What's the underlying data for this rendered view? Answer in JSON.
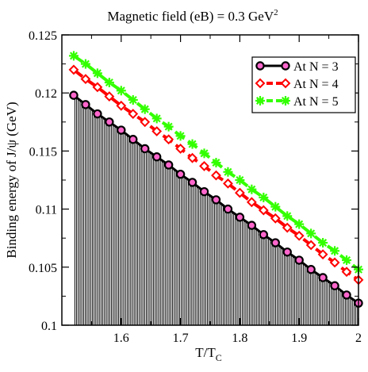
{
  "chart_data": {
    "type": "line",
    "title_main": "Magnetic field (eB) = 0.3 GeV",
    "title_sup": "2",
    "xlabel_main": "T/T",
    "xlabel_sub": "C",
    "ylabel": "Binding energy of J/ψ  (GeV)",
    "xlim": [
      1.5,
      2.0
    ],
    "ylim": [
      0.1,
      0.125
    ],
    "xticks": [
      1.6,
      1.7,
      1.8,
      1.9,
      2.0
    ],
    "xtick_labels": [
      "1.6",
      "1.7",
      "1.8",
      "1.9",
      "2"
    ],
    "yticks": [
      0.1,
      0.105,
      0.11,
      0.115,
      0.12,
      0.125
    ],
    "ytick_labels": [
      "0.1",
      "0.105",
      "0.11",
      "0.115",
      "0.12",
      "0.125"
    ],
    "legend_position": "top-right",
    "hatched_fill_under": "At N = 3",
    "x": [
      1.52,
      1.54,
      1.56,
      1.58,
      1.6,
      1.62,
      1.64,
      1.66,
      1.68,
      1.7,
      1.72,
      1.74,
      1.76,
      1.78,
      1.8,
      1.82,
      1.84,
      1.86,
      1.88,
      1.9,
      1.92,
      1.94,
      1.96,
      1.98,
      2.0
    ],
    "series": [
      {
        "name": "At N = 3",
        "color": "#000000",
        "marker": "circle",
        "values": [
          0.1198,
          0.119,
          0.1182,
          0.1175,
          0.1168,
          0.116,
          0.1152,
          0.1145,
          0.1138,
          0.113,
          0.1123,
          0.1115,
          0.1108,
          0.11,
          0.1093,
          0.1086,
          0.1078,
          0.1071,
          0.1063,
          0.1056,
          0.1048,
          0.1041,
          0.1034,
          0.1026,
          0.1019
        ]
      },
      {
        "name": "At N = 4",
        "color": "#ff0000",
        "marker": "diamond",
        "values": [
          0.122,
          0.1212,
          0.1205,
          0.1197,
          0.1189,
          0.1182,
          0.1175,
          0.1167,
          0.116,
          0.1152,
          0.1144,
          0.1137,
          0.1129,
          0.1122,
          0.1114,
          0.1106,
          0.1099,
          0.1092,
          0.1084,
          0.1077,
          0.1069,
          0.1061,
          0.1054,
          0.1046,
          0.1039
        ]
      },
      {
        "name": "At N = 5",
        "color": "#33ff00",
        "marker": "asterisk",
        "values": [
          0.1232,
          0.1225,
          0.1217,
          0.1209,
          0.1202,
          0.1194,
          0.1186,
          0.1178,
          0.1171,
          0.1163,
          0.1156,
          0.1148,
          0.114,
          0.1132,
          0.1125,
          0.1117,
          0.111,
          0.1102,
          0.1094,
          0.1087,
          0.1079,
          0.1071,
          0.1064,
          0.1056,
          0.1048
        ]
      }
    ]
  }
}
